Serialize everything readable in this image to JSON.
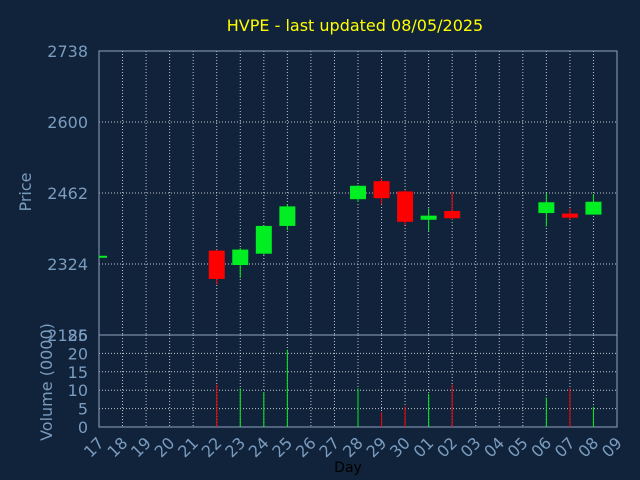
{
  "chart_data": {
    "type": "candlestick",
    "title": "HVPE - last updated 08/05/2025",
    "xlabel": "Day",
    "price_panel": {
      "ylabel": "Price",
      "ylim": [
        2186,
        2738
      ],
      "ticks": [
        2186,
        2324,
        2462,
        2600,
        2738
      ],
      "grid": true
    },
    "volume_panel": {
      "ylabel": "Volume (0000)",
      "ylim": [
        0,
        25
      ],
      "ticks": [
        0,
        5,
        10,
        15,
        20,
        25
      ],
      "grid": true
    },
    "x_tick_labels": [
      "17",
      "18",
      "19",
      "20",
      "21",
      "22",
      "23",
      "24",
      "25",
      "26",
      "27",
      "28",
      "29",
      "30",
      "01",
      "02",
      "03",
      "04",
      "05",
      "06",
      "07",
      "08",
      "09"
    ],
    "colors": {
      "up": "#00ee22",
      "down": "#ff0000",
      "background": "#11233a",
      "axis_text": "#7a9cbf",
      "title": "#ffff00",
      "grid": "#ffffff"
    },
    "candles": [
      {
        "day": "17",
        "open": 2340,
        "high": 2341,
        "low": 2338,
        "close": 2340
      },
      {
        "day": "22",
        "open": 2350,
        "high": 2352,
        "low": 2284,
        "close": 2295
      },
      {
        "day": "23",
        "open": 2322,
        "high": 2355,
        "low": 2297,
        "close": 2352
      },
      {
        "day": "24",
        "open": 2344,
        "high": 2398,
        "low": 2342,
        "close": 2398
      },
      {
        "day": "25",
        "open": 2398,
        "high": 2440,
        "low": 2390,
        "close": 2436
      },
      {
        "day": "28",
        "open": 2450,
        "high": 2477,
        "low": 2445,
        "close": 2476
      },
      {
        "day": "29",
        "open": 2485,
        "high": 2490,
        "low": 2440,
        "close": 2452
      },
      {
        "day": "30",
        "open": 2465,
        "high": 2468,
        "low": 2400,
        "close": 2406
      },
      {
        "day": "01",
        "open": 2410,
        "high": 2432,
        "low": 2388,
        "close": 2418
      },
      {
        "day": "02",
        "open": 2427,
        "high": 2464,
        "low": 2410,
        "close": 2413
      },
      {
        "day": "06",
        "open": 2423,
        "high": 2462,
        "low": 2397,
        "close": 2444
      },
      {
        "day": "07",
        "open": 2422,
        "high": 2432,
        "low": 2410,
        "close": 2414
      },
      {
        "day": "08",
        "open": 2420,
        "high": 2460,
        "low": 2420,
        "close": 2445
      }
    ],
    "volume": [
      {
        "day": "22",
        "value": 11.5,
        "direction": "down"
      },
      {
        "day": "23",
        "value": 10.5,
        "direction": "up"
      },
      {
        "day": "24",
        "value": 9.5,
        "direction": "up"
      },
      {
        "day": "25",
        "value": 21,
        "direction": "up"
      },
      {
        "day": "28",
        "value": 10.5,
        "direction": "up"
      },
      {
        "day": "29",
        "value": 4,
        "direction": "down"
      },
      {
        "day": "30",
        "value": 5.5,
        "direction": "down"
      },
      {
        "day": "01",
        "value": 9,
        "direction": "up"
      },
      {
        "day": "02",
        "value": 11.5,
        "direction": "down"
      },
      {
        "day": "06",
        "value": 8,
        "direction": "up"
      },
      {
        "day": "07",
        "value": 10.5,
        "direction": "down"
      },
      {
        "day": "08",
        "value": 5.5,
        "direction": "up"
      }
    ]
  }
}
